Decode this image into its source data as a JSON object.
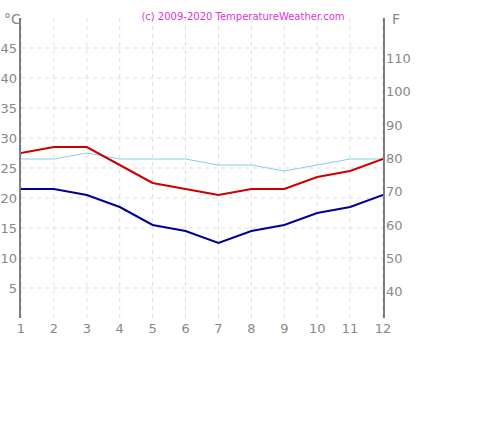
{
  "chart_data": {
    "type": "line",
    "title": "(c) 2009-2020 TemperatureWeather.com",
    "y_label": "°C",
    "y2_label": "F",
    "x": [
      1,
      2,
      3,
      4,
      5,
      6,
      7,
      8,
      9,
      10,
      11,
      12
    ],
    "xlim": [
      1,
      12
    ],
    "xticks": [
      1,
      2,
      3,
      4,
      5,
      6,
      7,
      8,
      9,
      10,
      11,
      12
    ],
    "ylim": [
      0,
      50
    ],
    "yticks": [
      5,
      10,
      15,
      20,
      25,
      30,
      35,
      40,
      45
    ],
    "y2lim": [
      32,
      122
    ],
    "y2ticks": [
      40,
      50,
      60,
      70,
      80,
      90,
      100,
      110
    ],
    "grid": true,
    "series": [
      {
        "color": "#87ceeb",
        "values": [
          26.5,
          26.5,
          27.5,
          26.5,
          26.5,
          26.5,
          25.5,
          25.5,
          24.5,
          25.5,
          26.5,
          26.5
        ]
      },
      {
        "color": "#cc0000",
        "values": [
          27.5,
          28.5,
          28.5,
          25.5,
          22.5,
          21.5,
          20.5,
          21.5,
          21.5,
          23.5,
          24.5,
          26.5
        ]
      },
      {
        "color": "#000099",
        "values": [
          21.5,
          21.5,
          20.5,
          18.5,
          15.5,
          14.5,
          12.5,
          14.5,
          15.5,
          17.5,
          18.5,
          20.5
        ]
      }
    ]
  }
}
